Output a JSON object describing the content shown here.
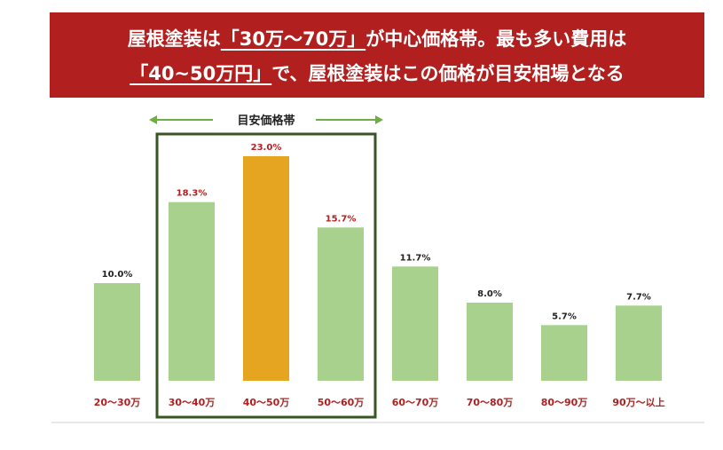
{
  "banner": {
    "line1_pre": "屋根塗装は",
    "line1_hl": "「30万～70万」",
    "line1_post": "が中心価格帯。最も多い費用は",
    "line2_hl": "「40~50万円」",
    "line2_post": "で、屋根塗装はこの価格が目安相場となる"
  },
  "colors": {
    "banner_bg": "#b21f1f",
    "bar": "#a9d18e",
    "bar_highlight": "#e6a520",
    "frame": "#375623",
    "arrow": "#70ad47",
    "category_text": "#b21f1f",
    "label_default": "#222222",
    "label_in_range": "#b21f1f"
  },
  "chart_data": {
    "type": "bar",
    "categories": [
      "20～30万",
      "30～40万",
      "40～50万",
      "50～60万",
      "60～70万",
      "70～80万",
      "80～90万",
      "90万～以上"
    ],
    "values": [
      10.0,
      18.3,
      23.0,
      15.7,
      11.7,
      8.0,
      5.7,
      7.7
    ],
    "data_labels": [
      "10.0%",
      "18.3%",
      "23.0%",
      "15.7%",
      "11.7%",
      "8.0%",
      "5.7%",
      "7.7%"
    ],
    "highlight_index": 2,
    "range_label": "目安価格帯",
    "range_categories": [
      1,
      3
    ],
    "ylim": [
      0,
      25
    ],
    "grid": false,
    "title": "",
    "xlabel": "",
    "ylabel": ""
  }
}
